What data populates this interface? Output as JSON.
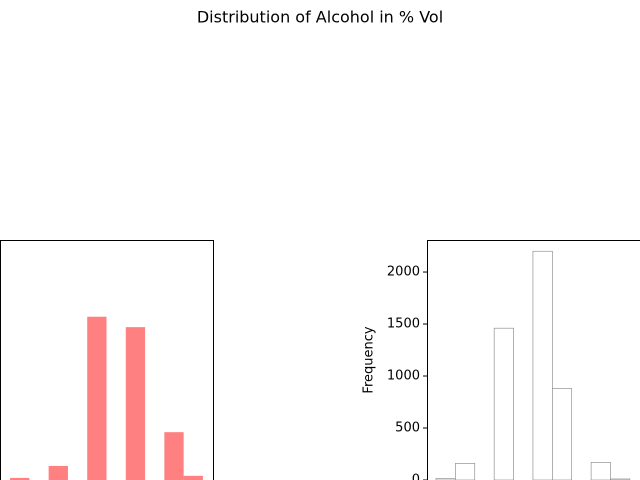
{
  "title": "Distribution of Alcohol in % Vol",
  "chart_data": [
    {
      "type": "histogram",
      "bins": [
        8,
        8.69,
        9.38,
        10.07,
        10.76,
        11.45,
        12.14,
        12.83,
        13.52,
        14.21,
        14.9
      ],
      "values": [
        20,
        0,
        135,
        0,
        1570,
        0,
        1470,
        0,
        460,
        40
      ],
      "color": "#ff8080",
      "xlim": [
        7.64,
        15.26
      ],
      "ylim": [
        0,
        2308
      ]
    },
    {
      "type": "histogram",
      "bins": [
        8,
        8.69,
        9.38,
        10.07,
        10.76,
        11.45,
        12.14,
        12.83,
        13.52,
        14.21,
        14.9
      ],
      "values": [
        15,
        160,
        0,
        1460,
        0,
        2200,
        880,
        0,
        170,
        10
      ],
      "color": "#ffffff",
      "edgecolor": "#808080",
      "ylabel": "Frequency",
      "xlim": [
        7.68,
        15.26
      ],
      "ylim": [
        0,
        2308
      ],
      "yticks": [
        0,
        500,
        1000,
        1500,
        2000
      ]
    }
  ]
}
